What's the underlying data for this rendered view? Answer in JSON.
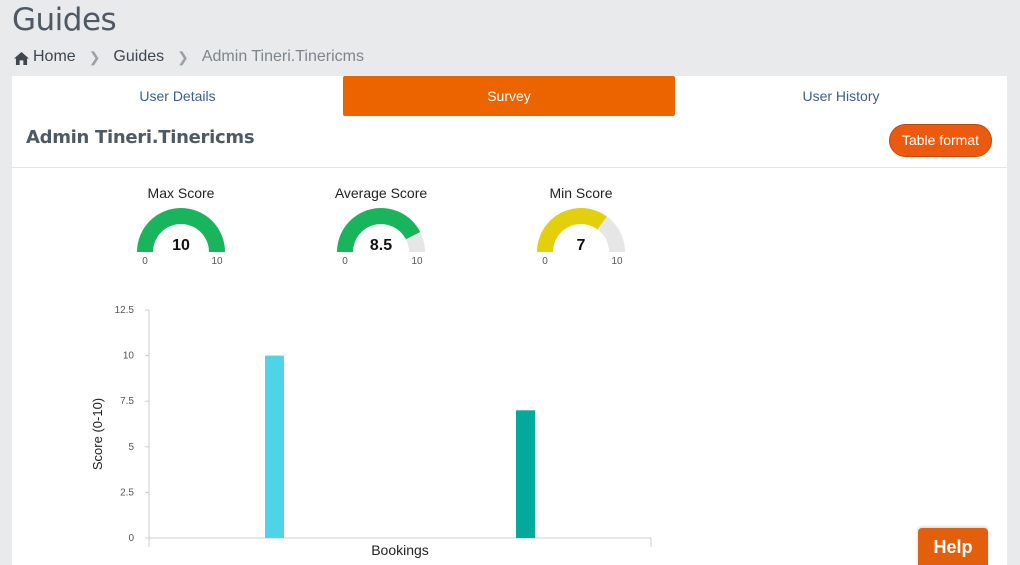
{
  "page": {
    "title": "Guides"
  },
  "breadcrumb": {
    "home": "Home",
    "section": "Guides",
    "current": "Admin Tineri.Tinericms"
  },
  "tabs": [
    {
      "label": "User Details",
      "active": false
    },
    {
      "label": "Survey",
      "active": true
    },
    {
      "label": "User History",
      "active": false
    }
  ],
  "profile": {
    "name": "Admin Tineri.Tinericms",
    "table_button": "Table format"
  },
  "gauges": [
    {
      "title": "Max Score",
      "value": 10,
      "display": "10",
      "min": 0,
      "max": 10,
      "min_label": "0",
      "max_label": "10",
      "color": "#18b55c"
    },
    {
      "title": "Average Score",
      "value": 8.5,
      "display": "8.5",
      "min": 0,
      "max": 10,
      "min_label": "0",
      "max_label": "10",
      "color": "#18b55c"
    },
    {
      "title": "Min Score",
      "value": 7,
      "display": "7",
      "min": 0,
      "max": 10,
      "min_label": "0",
      "max_label": "10",
      "color": "#e3cf0c"
    }
  ],
  "chart_data": {
    "type": "bar",
    "categories": [
      "Bookings"
    ],
    "series": [
      {
        "values": [
          10
        ],
        "color": "#4fd3e6"
      },
      {
        "values": [
          7
        ],
        "color": "#03a99a"
      }
    ],
    "title": "",
    "xlabel": "Bookings",
    "ylabel": "Score (0-10)",
    "ylim": [
      0,
      12.5
    ],
    "yticks": [
      "0",
      "2.5",
      "5",
      "7.5",
      "10",
      "12.5"
    ],
    "grid": false
  },
  "help": {
    "label": "Help"
  }
}
